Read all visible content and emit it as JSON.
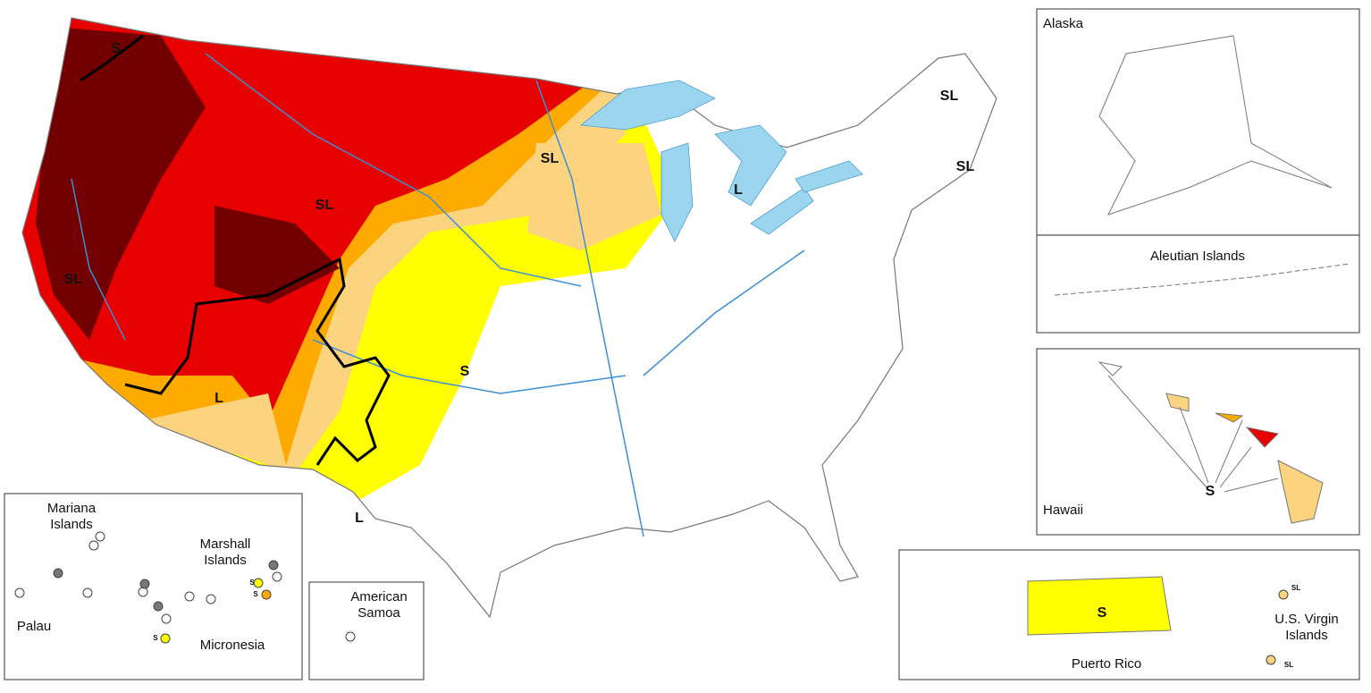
{
  "main_map": {
    "impact_labels": [
      "S",
      "SL",
      "SL",
      "SL",
      "SL",
      "L",
      "SL",
      "S",
      "L",
      "L"
    ]
  },
  "insets": {
    "alaska": {
      "title": "Alaska"
    },
    "aleutian": {
      "title": "Aleutian Islands"
    },
    "hawaii": {
      "title": "Hawaii",
      "impact_labels": [
        "S"
      ]
    },
    "puerto_rico": {
      "title": "Puerto Rico",
      "impact_labels": [
        "S"
      ]
    },
    "virgin_islands": {
      "title": "U.S. Virgin Islands",
      "impact_labels": [
        "SL",
        "SL"
      ]
    },
    "pacific": {
      "region_labels": [
        "Mariana Islands",
        "Marshall Islands",
        "Palau",
        "Micronesia"
      ],
      "impact_labels": [
        "S",
        "S",
        "S"
      ]
    },
    "american_samoa": {
      "title": "American Samoa"
    }
  }
}
